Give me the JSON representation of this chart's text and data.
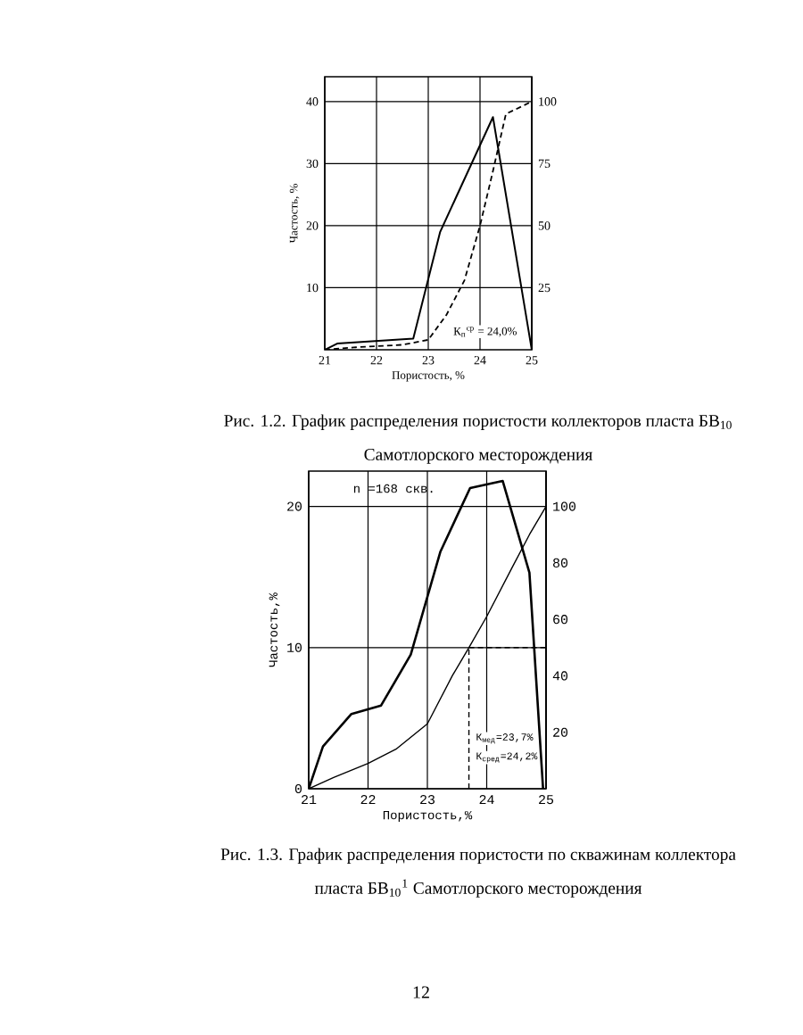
{
  "chart_data": [
    {
      "type": "line",
      "xlabel": "Пористость, %",
      "ylabel": "Частость, %",
      "xlim": [
        21,
        25
      ],
      "xticks": [
        21,
        22,
        23,
        24,
        25
      ],
      "ylim": [
        0,
        44
      ],
      "yticks": [
        10,
        20,
        30,
        40
      ],
      "y2lim": [
        0,
        110
      ],
      "y2ticks": [
        25,
        50,
        75,
        100
      ],
      "grid": true,
      "series": [
        {
          "color": "#000000",
          "x": [
            21,
            21.24,
            22.71,
            23.23,
            24.25,
            25
          ],
          "values": [
            0,
            1,
            1.8,
            19,
            37.5,
            0
          ]
        },
        {
          "color": "#000000",
          "axis": "y2",
          "line_style": "dashed",
          "x": [
            21,
            21.6,
            22.5,
            23.0,
            23.35,
            23.7,
            24.0,
            24.25,
            24.5,
            25
          ],
          "values": [
            0,
            1,
            2,
            4,
            14,
            28,
            50,
            72,
            95,
            100
          ]
        }
      ],
      "annotations": [
        "К$_{п}$$^{ср}$ = 24,0%",
        "Рис. 1.2. График распределения пористости коллекторов пласта БВ$_{10}$ Самотлорского месторождения"
      ]
    },
    {
      "type": "line",
      "xlabel": "Пористость,%",
      "ylabel": "Частость,%",
      "xlim": [
        21,
        25
      ],
      "xticks": [
        21,
        22,
        23,
        24,
        25
      ],
      "ylim": [
        0,
        22.5
      ],
      "yticks": [
        0,
        10,
        20
      ],
      "y2lim": [
        0,
        112.5
      ],
      "y2ticks": [
        20,
        40,
        60,
        80,
        100
      ],
      "grid": true,
      "series": [
        {
          "color": "#000000",
          "x": [
            21,
            21.24,
            21.72,
            22.22,
            22.72,
            23.22,
            23.72,
            24.27,
            24.72,
            24.95
          ],
          "values": [
            0,
            3,
            5.3,
            5.9,
            9.5,
            16.8,
            21.3,
            21.8,
            15.3,
            0
          ]
        },
        {
          "color": "#000000",
          "axis": "y2",
          "x": [
            21,
            21.42,
            22,
            22.47,
            23,
            23.42,
            23.7,
            24,
            24.42,
            24.72,
            25
          ],
          "values": [
            0,
            4,
            9,
            14,
            23,
            40,
            50,
            61,
            78,
            90,
            100
          ]
        }
      ],
      "ref_lines": [
        {
          "axis": "x",
          "value": 23.7,
          "line_style": "dashed"
        },
        {
          "axis": "y2",
          "value": 50,
          "line_style": "dashed"
        }
      ],
      "annotations": [
        "n =168 скв.",
        "К$_{мед}$=23,7%",
        "К$_{сред}$=24,2%",
        "Рис. 1.3. График распределения пористости по скважинам коллектора пласта БВ$_{10}$$^{1}$ Самотлорского месторождения",
        "12"
      ]
    }
  ]
}
